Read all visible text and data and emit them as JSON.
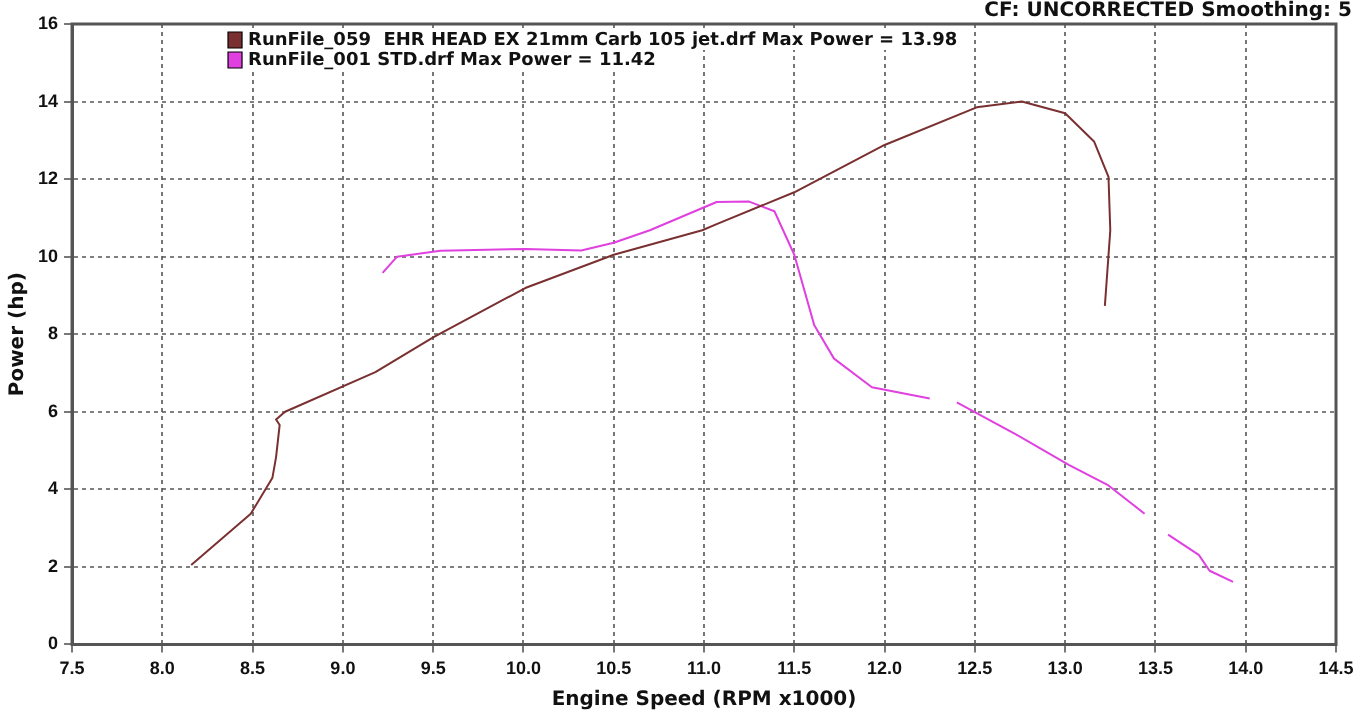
{
  "chart_data": {
    "type": "line",
    "xlabel": "Engine Speed (RPM x1000)",
    "ylabel": "Power (hp)",
    "annotations": [
      "CF: UNCORRECTED  Smoothing: 5"
    ],
    "xlim": [
      7.5,
      14.5
    ],
    "xticks": [
      {
        "value": 7.5,
        "label": "7.5"
      },
      {
        "value": 8,
        "label": "8.0"
      },
      {
        "value": 8.5,
        "label": "8.5"
      },
      {
        "value": 9,
        "label": "9.0"
      },
      {
        "value": 9.5,
        "label": "9.5"
      },
      {
        "value": 10,
        "label": "10.0"
      },
      {
        "value": 10.5,
        "label": "10.5"
      },
      {
        "value": 11,
        "label": "11.0"
      },
      {
        "value": 11.5,
        "label": "11.5"
      },
      {
        "value": 12,
        "label": "12.0"
      },
      {
        "value": 12.5,
        "label": "12.5"
      },
      {
        "value": 13,
        "label": "13.0"
      },
      {
        "value": 13.5,
        "label": "13.5"
      },
      {
        "value": 14,
        "label": "14.0"
      },
      {
        "value": 14.5,
        "label": "14.5"
      }
    ],
    "ylim": [
      0,
      16
    ],
    "yticks": [
      0,
      2,
      4,
      6,
      8,
      10,
      12,
      14,
      16
    ],
    "grid": true,
    "legend": "top left",
    "marker": "none",
    "line_style": "solid",
    "series": [
      {
        "name": "RunFile_059  EHR HEAD EX 21mm Carb 105 jet.drf Max Power = 13.98",
        "color": "#7a3030",
        "x": [
          8.16,
          8.49,
          8.61,
          8.63,
          8.65,
          8.63,
          8.68,
          9.18,
          9.5,
          10.01,
          10.5,
          10.99,
          11.07,
          11.5,
          12.0,
          12.51,
          12.76,
          13.0,
          13.16,
          13.24,
          13.25,
          13.22
        ],
        "values": [
          2.05,
          3.37,
          4.3,
          4.83,
          5.66,
          5.8,
          6.0,
          7.02,
          7.92,
          9.19,
          10.05,
          10.68,
          10.84,
          11.66,
          12.88,
          13.85,
          14.0,
          13.7,
          12.97,
          12.06,
          10.68,
          8.73
        ]
      },
      {
        "name": "RunFile_001 STD.drf Max Power = 11.42",
        "color": "#e040e0",
        "x": [
          9.22,
          9.3,
          9.54,
          10.01,
          10.32,
          10.5,
          10.7,
          11.07,
          11.25,
          11.39,
          11.5,
          11.61,
          11.72,
          11.93,
          12.25,
          12.32,
          12.4,
          12.73,
          13.02,
          13.24,
          13.44,
          13.5,
          13.57,
          13.74,
          13.8,
          13.93
        ],
        "values": [
          9.58,
          10.0,
          10.15,
          10.2,
          10.16,
          10.36,
          10.68,
          11.41,
          11.42,
          11.17,
          10.05,
          8.24,
          7.37,
          6.63,
          6.34,
          null,
          6.24,
          5.41,
          4.63,
          4.1,
          3.37,
          null,
          2.83,
          2.31,
          1.9,
          1.61
        ]
      }
    ]
  }
}
